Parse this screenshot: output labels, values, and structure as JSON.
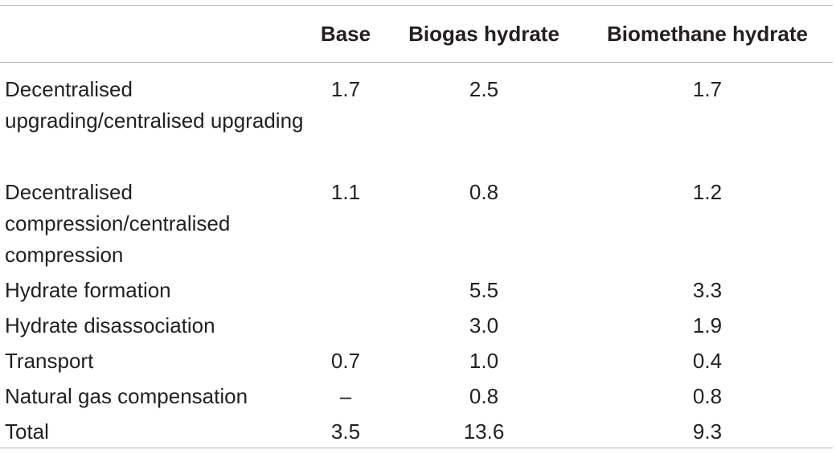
{
  "table": {
    "headers": [
      "",
      "Base",
      "Biogas hydrate",
      "Biomethane hydrate"
    ],
    "rows": [
      {
        "label": "Decentralised upgrading/centralised upgrading",
        "base": "1.7",
        "biogas": "2.5",
        "biomethane": "1.7"
      },
      {
        "label": "Decentralised compression/centralised compression",
        "base": "1.1",
        "biogas": "0.8",
        "biomethane": "1.2"
      },
      {
        "label": "Hydrate formation",
        "base": "",
        "biogas": "5.5",
        "biomethane": "3.3"
      },
      {
        "label": "Hydrate disassociation",
        "base": "",
        "biogas": "3.0",
        "biomethane": "1.9"
      },
      {
        "label": "Transport",
        "base": "0.7",
        "biogas": "1.0",
        "biomethane": "0.4"
      },
      {
        "label": "Natural gas compensation",
        "base": "–",
        "biogas": "0.8",
        "biomethane": "0.8"
      },
      {
        "label": "Total",
        "base": "3.5",
        "biogas": "13.6",
        "biomethane": "9.3"
      }
    ]
  }
}
